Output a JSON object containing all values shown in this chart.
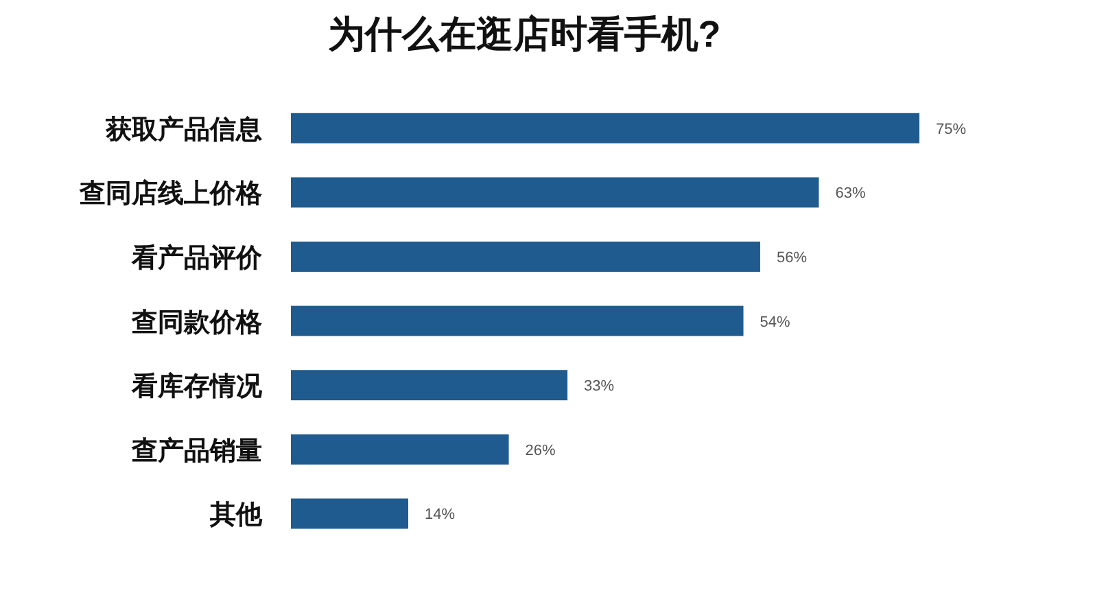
{
  "chart_data": {
    "type": "bar",
    "orientation": "horizontal",
    "title": "为什么在逛店时看手机?",
    "categories": [
      "获取产品信息",
      "查同店线上价格",
      "看产品评价",
      "查同款价格",
      "看库存情况",
      "查产品销量",
      "其他"
    ],
    "values": [
      75,
      63,
      56,
      54,
      33,
      26,
      14
    ],
    "value_labels": [
      "75%",
      "63%",
      "56%",
      "54%",
      "33%",
      "26%",
      "14%"
    ],
    "color": "#1f5b8e"
  }
}
